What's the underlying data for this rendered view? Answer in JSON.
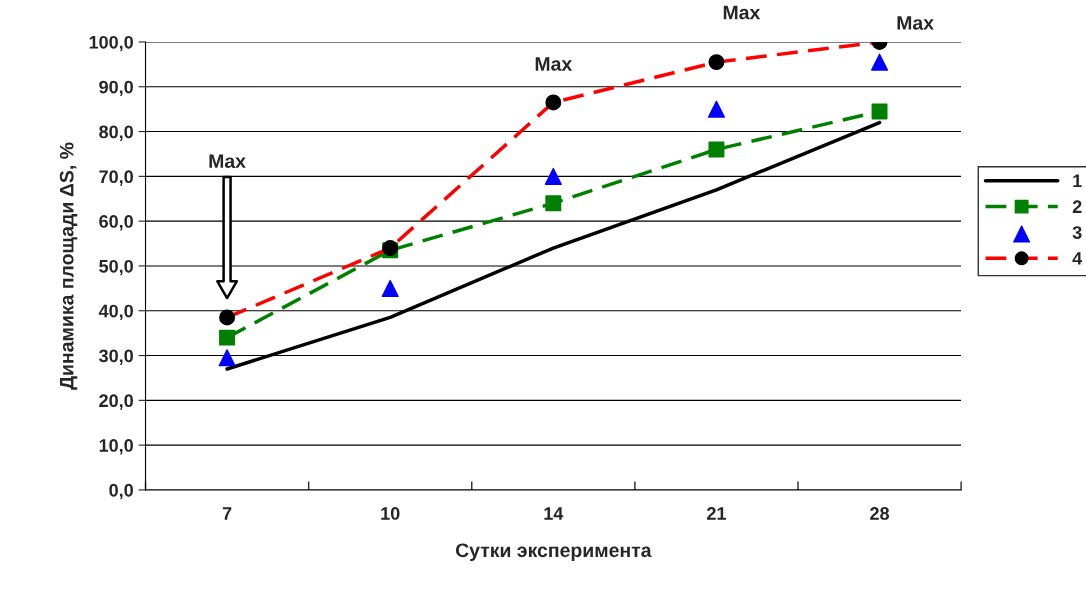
{
  "chart_data": {
    "type": "line",
    "xlabel": "Сутки эксперимента",
    "ylabel": "Динамика площади ΔS, %",
    "categories": [
      "7",
      "10",
      "14",
      "21",
      "28"
    ],
    "series": [
      {
        "name": "1",
        "color": "#000000",
        "line_style": "solid",
        "marker": "none",
        "values": [
          27,
          38.5,
          54,
          67,
          82
        ]
      },
      {
        "name": "2",
        "color": "#008000",
        "line_style": "dashed",
        "marker": "square",
        "values": [
          34,
          53.5,
          64,
          76,
          84.5
        ]
      },
      {
        "name": "3",
        "type": "scatter",
        "color": "#0000ff",
        "marker": "triangle",
        "values": [
          29.5,
          45,
          70,
          85,
          95.5
        ]
      },
      {
        "name": "4",
        "color": "#ff0000",
        "colors": [
          "#000000",
          "#000000",
          "#000000",
          "#000000",
          "#000000"
        ],
        "line_style": "dashed",
        "marker": "circle",
        "values": [
          38.5,
          54,
          86.5,
          95.5,
          100
        ]
      }
    ],
    "ylim": [
      0,
      100
    ],
    "yticks": [
      {
        "value": 0,
        "label": "0,0"
      },
      {
        "value": 10,
        "label": "10,0"
      },
      {
        "value": 20,
        "label": "20,0"
      },
      {
        "value": 30,
        "label": "30,0"
      },
      {
        "value": 40,
        "label": "40,0"
      },
      {
        "value": 50,
        "label": "50,0"
      },
      {
        "value": 60,
        "label": "60,0"
      },
      {
        "value": 70,
        "label": "70,0"
      },
      {
        "value": 80,
        "label": "80,0"
      },
      {
        "value": 90,
        "label": "90,0"
      },
      {
        "value": 100,
        "label": "100,0"
      }
    ],
    "grid": "y",
    "legend": "right",
    "annotations": [
      "Max",
      {
        "text": "Max",
        "x": "14",
        "y": 86.5
      },
      {
        "text": "Max",
        "x": "21",
        "y": 95.5
      },
      {
        "text": "Max",
        "x": "28",
        "y": 100
      }
    ]
  }
}
